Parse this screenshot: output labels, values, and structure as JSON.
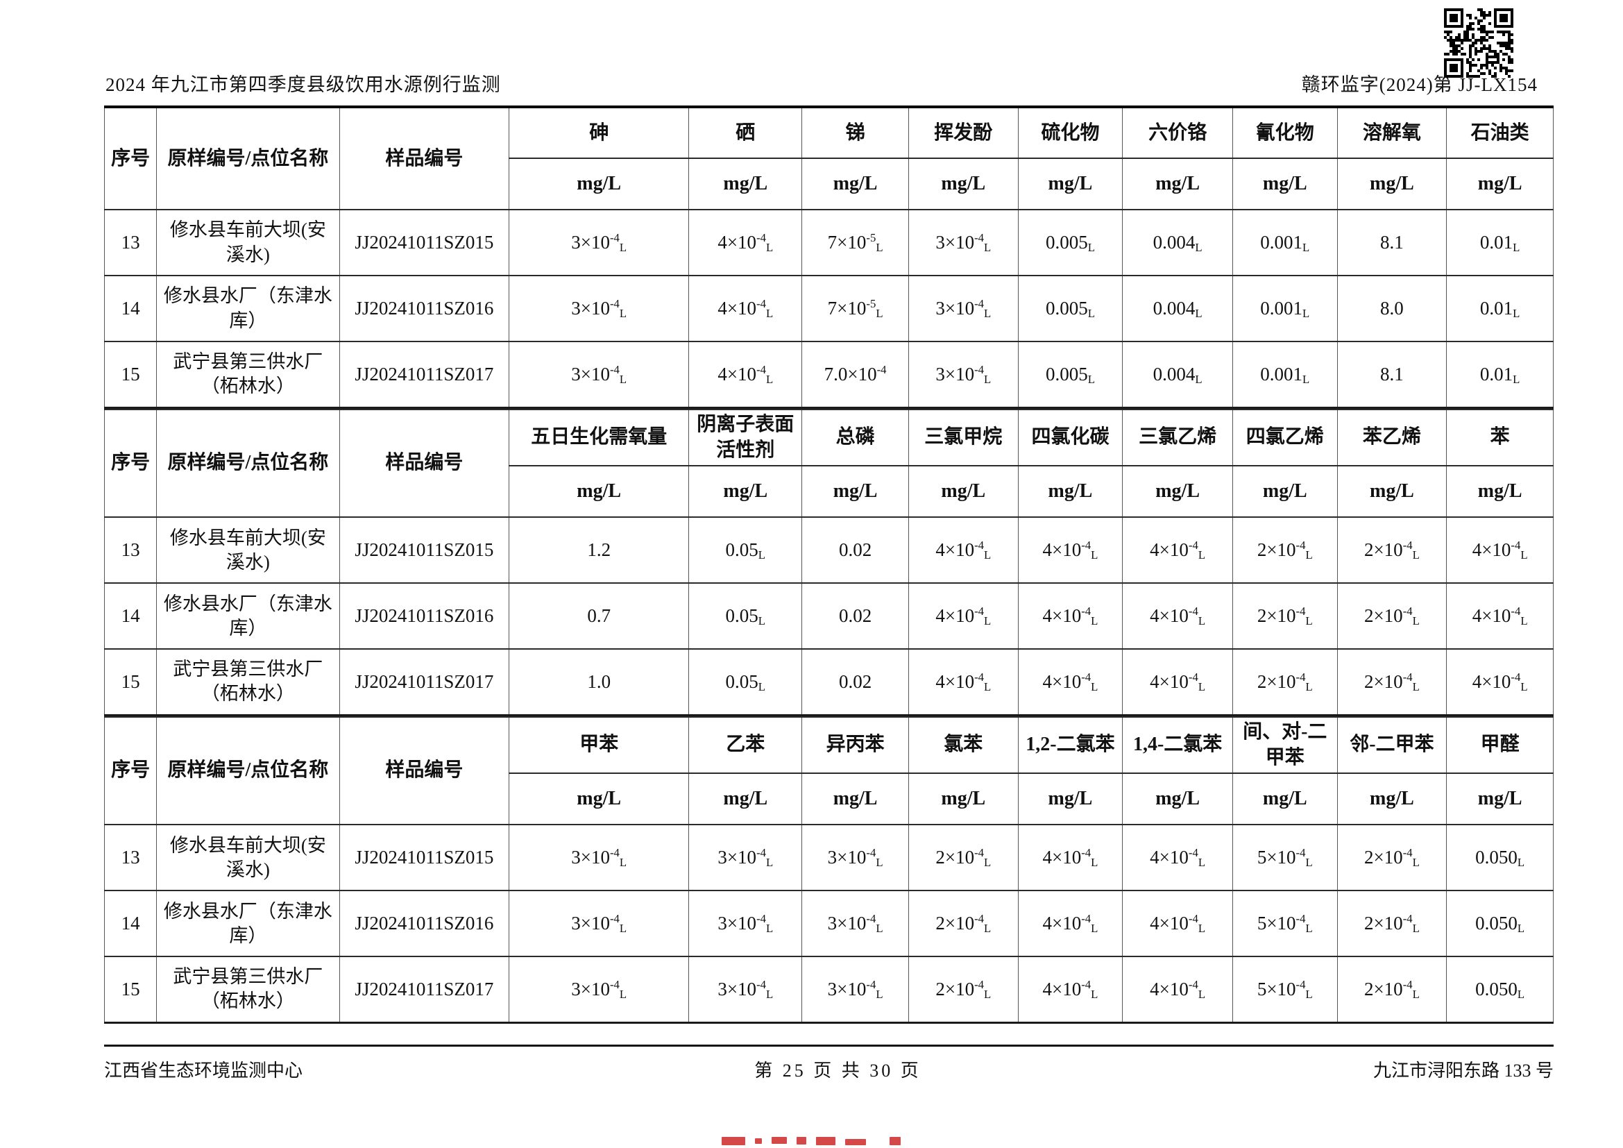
{
  "page": {
    "header_left": "2024 年九江市第四季度县级饮用水源例行监测",
    "header_right": "赣环监字(2024)第 JJ-LX154",
    "footer_left": "江西省生态环境监测中心",
    "footer_center": "第 25 页 共 30  页",
    "footer_right": "九江市浔阳东路 133 号",
    "stamp_color": "#d03434"
  },
  "table_common": {
    "col_no": "序号",
    "col_site": "原样编号/点位名称",
    "col_sample": "样品编号",
    "unit": "mg/L"
  },
  "sections": [
    {
      "params": [
        "砷",
        "硒",
        "锑",
        "挥发酚",
        "硫化物",
        "六价铬",
        "氰化物",
        "溶解氧",
        "石油类"
      ],
      "rows": [
        {
          "no": "13",
          "site": "修水县车前大坝(安溪水)",
          "sample": "JJ20241011SZ015",
          "values": [
            "3×10^{-4}_{L}",
            "4×10^{-4}_{L}",
            "7×10^{-5}_{L}",
            "3×10^{-4}_{L}",
            "0.005_{L}",
            "0.004_{L}",
            "0.001_{L}",
            "8.1",
            "0.01_{L}"
          ]
        },
        {
          "no": "14",
          "site": "修水县水厂（东津水库）",
          "sample": "JJ20241011SZ016",
          "values": [
            "3×10^{-4}_{L}",
            "4×10^{-4}_{L}",
            "7×10^{-5}_{L}",
            "3×10^{-4}_{L}",
            "0.005_{L}",
            "0.004_{L}",
            "0.001_{L}",
            "8.0",
            "0.01_{L}"
          ]
        },
        {
          "no": "15",
          "site": "武宁县第三供水厂（柘林水）",
          "sample": "JJ20241011SZ017",
          "values": [
            "3×10^{-4}_{L}",
            "4×10^{-4}_{L}",
            "7.0×10^{-4}",
            "3×10^{-4}_{L}",
            "0.005_{L}",
            "0.004_{L}",
            "0.001_{L}",
            "8.1",
            "0.01_{L}"
          ]
        }
      ]
    },
    {
      "params": [
        "五日生化需氧量",
        "阴离子表面活性剂",
        "总磷",
        "三氯甲烷",
        "四氯化碳",
        "三氯乙烯",
        "四氯乙烯",
        "苯乙烯",
        "苯"
      ],
      "rows": [
        {
          "no": "13",
          "site": "修水县车前大坝(安溪水)",
          "sample": "JJ20241011SZ015",
          "values": [
            "1.2",
            "0.05_{L}",
            "0.02",
            "4×10^{-4}_{L}",
            "4×10^{-4}_{L}",
            "4×10^{-4}_{L}",
            "2×10^{-4}_{L}",
            "2×10^{-4}_{L}",
            "4×10^{-4}_{L}"
          ]
        },
        {
          "no": "14",
          "site": "修水县水厂（东津水库）",
          "sample": "JJ20241011SZ016",
          "values": [
            "0.7",
            "0.05_{L}",
            "0.02",
            "4×10^{-4}_{L}",
            "4×10^{-4}_{L}",
            "4×10^{-4}_{L}",
            "2×10^{-4}_{L}",
            "2×10^{-4}_{L}",
            "4×10^{-4}_{L}"
          ]
        },
        {
          "no": "15",
          "site": "武宁县第三供水厂（柘林水）",
          "sample": "JJ20241011SZ017",
          "values": [
            "1.0",
            "0.05_{L}",
            "0.02",
            "4×10^{-4}_{L}",
            "4×10^{-4}_{L}",
            "4×10^{-4}_{L}",
            "2×10^{-4}_{L}",
            "2×10^{-4}_{L}",
            "4×10^{-4}_{L}"
          ]
        }
      ]
    },
    {
      "params": [
        "甲苯",
        "乙苯",
        "异丙苯",
        "氯苯",
        "1,2-二氯苯",
        "1,4-二氯苯",
        "间、对-二甲苯",
        "邻-二甲苯",
        "甲醛"
      ],
      "rows": [
        {
          "no": "13",
          "site": "修水县车前大坝(安溪水)",
          "sample": "JJ20241011SZ015",
          "values": [
            "3×10^{-4}_{L}",
            "3×10^{-4}_{L}",
            "3×10^{-4}_{L}",
            "2×10^{-4}_{L}",
            "4×10^{-4}_{L}",
            "4×10^{-4}_{L}",
            "5×10^{-4}_{L}",
            "2×10^{-4}_{L}",
            "0.050_{L}"
          ]
        },
        {
          "no": "14",
          "site": "修水县水厂（东津水库）",
          "sample": "JJ20241011SZ016",
          "values": [
            "3×10^{-4}_{L}",
            "3×10^{-4}_{L}",
            "3×10^{-4}_{L}",
            "2×10^{-4}_{L}",
            "4×10^{-4}_{L}",
            "4×10^{-4}_{L}",
            "5×10^{-4}_{L}",
            "2×10^{-4}_{L}",
            "0.050_{L}"
          ]
        },
        {
          "no": "15",
          "site": "武宁县第三供水厂（柘林水）",
          "sample": "JJ20241011SZ017",
          "values": [
            "3×10^{-4}_{L}",
            "3×10^{-4}_{L}",
            "3×10^{-4}_{L}",
            "2×10^{-4}_{L}",
            "4×10^{-4}_{L}",
            "4×10^{-4}_{L}",
            "5×10^{-4}_{L}",
            "2×10^{-4}_{L}",
            "0.050_{L}"
          ]
        }
      ]
    }
  ]
}
